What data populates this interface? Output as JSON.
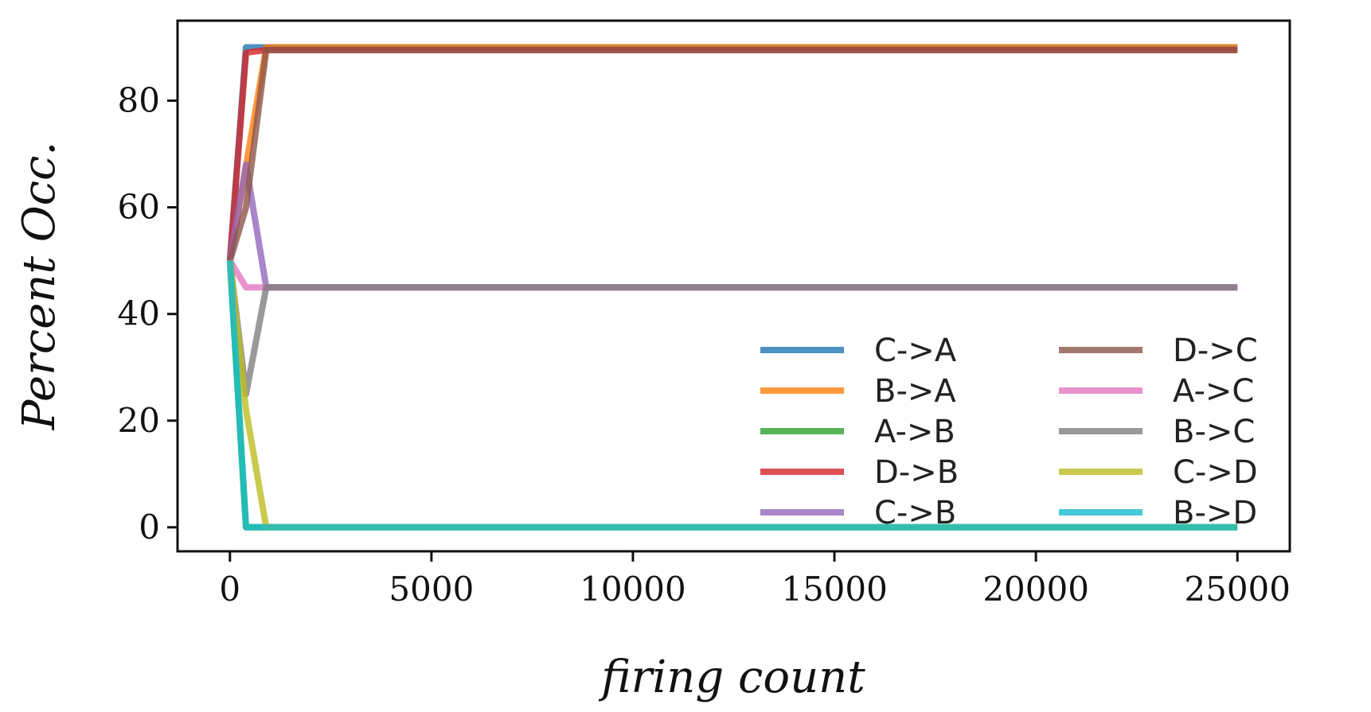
{
  "chart_data": {
    "type": "line",
    "title": "",
    "xlabel": "firing count",
    "ylabel": "Percent Occ.",
    "xlim": [
      -1300,
      26300
    ],
    "ylim": [
      -4.5,
      95
    ],
    "xticks": [
      0,
      5000,
      10000,
      15000,
      20000,
      25000
    ],
    "yticks": [
      0,
      20,
      40,
      60,
      80
    ],
    "grid": false,
    "legend_position": "lower-right",
    "legend_columns": 2,
    "series": [
      {
        "name": "C->A",
        "color": "#1f77b4",
        "x": [
          0,
          400,
          900,
          25000
        ],
        "y": [
          50,
          90,
          90,
          90
        ]
      },
      {
        "name": "B->A",
        "color": "#ff7f0e",
        "x": [
          0,
          900,
          25000
        ],
        "y": [
          50,
          90,
          90
        ]
      },
      {
        "name": "A->B",
        "color": "#2ca02c",
        "x": [
          0,
          400,
          900,
          25000
        ],
        "y": [
          50,
          0,
          0,
          0
        ]
      },
      {
        "name": "D->B",
        "color": "#d62728",
        "x": [
          0,
          400,
          900,
          25000
        ],
        "y": [
          50,
          89,
          89.5,
          89.5
        ]
      },
      {
        "name": "C->B",
        "color": "#9467bd",
        "x": [
          0,
          400,
          900,
          25000
        ],
        "y": [
          50,
          68,
          45,
          45
        ]
      },
      {
        "name": "D->C",
        "color": "#8c564b",
        "x": [
          0,
          400,
          900,
          25000
        ],
        "y": [
          50,
          60,
          89.5,
          89.5
        ]
      },
      {
        "name": "A->C",
        "color": "#e377c2",
        "x": [
          0,
          400,
          900,
          25000
        ],
        "y": [
          50,
          45,
          45,
          45
        ]
      },
      {
        "name": "B->C",
        "color": "#7f7f7f",
        "x": [
          0,
          400,
          900,
          25000
        ],
        "y": [
          50,
          25,
          45,
          45
        ]
      },
      {
        "name": "C->D",
        "color": "#bcbd22",
        "x": [
          0,
          400,
          900,
          25000
        ],
        "y": [
          50,
          22,
          0,
          0
        ]
      },
      {
        "name": "B->D",
        "color": "#17becf",
        "x": [
          0,
          400,
          900,
          25000
        ],
        "y": [
          50,
          0,
          0,
          0
        ]
      }
    ]
  }
}
